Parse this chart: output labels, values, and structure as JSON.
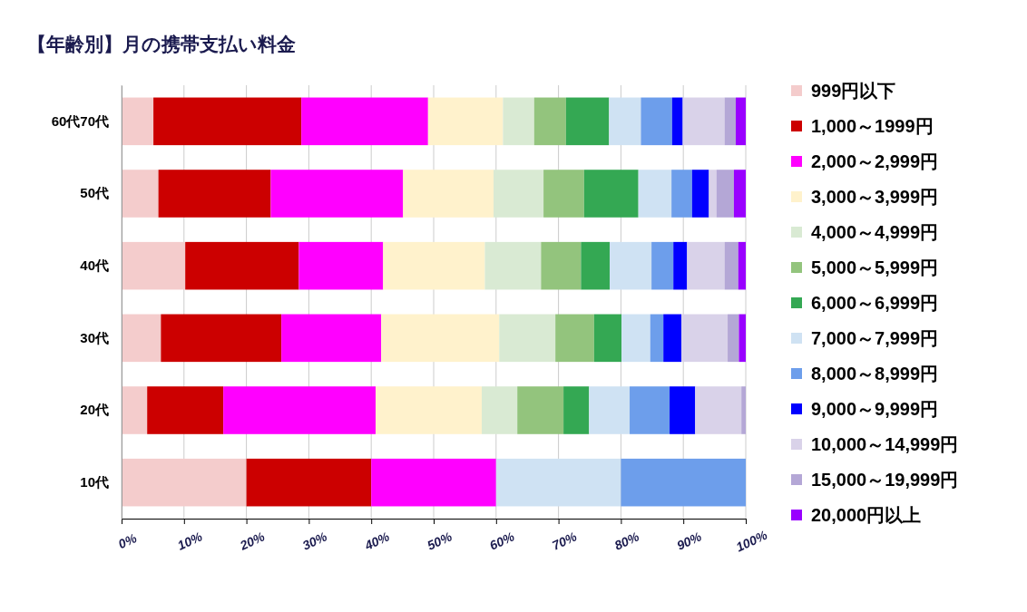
{
  "chart_data": {
    "type": "bar",
    "orientation": "horizontal",
    "stacked": true,
    "title": "【年齢別】月の携帯支払い料金",
    "categories": [
      "60代70代",
      "50代",
      "40代",
      "30代",
      "20代",
      "10代"
    ],
    "series": [
      {
        "name": "999円以下",
        "color": "#f4cccc",
        "values": [
          5.1,
          5.9,
          10.2,
          6.3,
          4.1,
          20
        ]
      },
      {
        "name": "1,000～1999円",
        "color": "#cc0000",
        "values": [
          23.7,
          18.0,
          18.2,
          19.3,
          12.2,
          20
        ]
      },
      {
        "name": "2,000～2,999円",
        "color": "#ff00ff",
        "values": [
          20.3,
          21.2,
          13.5,
          16.0,
          24.4,
          20
        ]
      },
      {
        "name": "3,000～3,999円",
        "color": "#fff2cc",
        "values": [
          12.0,
          14.5,
          16.3,
          18.9,
          17.0,
          0
        ]
      },
      {
        "name": "4,000～4,999円",
        "color": "#d9ead3",
        "values": [
          5.0,
          8.0,
          9.0,
          9.0,
          5.7,
          0
        ]
      },
      {
        "name": "5,000～5,999円",
        "color": "#93c47d",
        "values": [
          5.1,
          6.5,
          6.4,
          6.2,
          7.4,
          0
        ]
      },
      {
        "name": "6,000～6,999円",
        "color": "#34a853",
        "values": [
          6.9,
          8.7,
          4.6,
          4.4,
          4.1,
          0
        ]
      },
      {
        "name": "7,000～7,999円",
        "color": "#cfe2f3",
        "values": [
          5.1,
          5.3,
          6.7,
          4.6,
          6.5,
          20
        ]
      },
      {
        "name": "8,000～8,999円",
        "color": "#6d9eeb",
        "values": [
          5.0,
          3.3,
          3.5,
          2.1,
          6.4,
          20
        ]
      },
      {
        "name": "9,000～9,999円",
        "color": "#0000ff",
        "values": [
          1.7,
          2.7,
          2.2,
          2.9,
          4.1,
          0
        ]
      },
      {
        "name": "10,000～14,999円",
        "color": "#d9d2e9",
        "values": [
          6.7,
          1.2,
          6.0,
          7.4,
          7.4,
          0
        ]
      },
      {
        "name": "15,000～19,999円",
        "color": "#b4a7d6",
        "values": [
          1.8,
          2.8,
          2.2,
          1.8,
          0.7,
          0
        ]
      },
      {
        "name": "20,000円以上",
        "color": "#9900ff",
        "values": [
          1.6,
          1.9,
          1.2,
          1.1,
          0,
          0
        ]
      }
    ],
    "xlim": [
      0,
      100
    ],
    "xticks": [
      {
        "value": 0,
        "label": "0%"
      },
      {
        "value": 10,
        "label": "10%"
      },
      {
        "value": 20,
        "label": "20%"
      },
      {
        "value": 30,
        "label": "30%"
      },
      {
        "value": 40,
        "label": "40%"
      },
      {
        "value": 50,
        "label": "50%"
      },
      {
        "value": 60,
        "label": "60%"
      },
      {
        "value": 70,
        "label": "70%"
      },
      {
        "value": 80,
        "label": "80%"
      },
      {
        "value": 90,
        "label": "90%"
      },
      {
        "value": 100,
        "label": "100%"
      }
    ],
    "grid": "x",
    "legend": "right"
  }
}
